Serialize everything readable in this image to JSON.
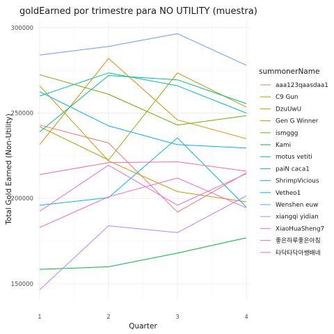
{
  "chart_data": {
    "type": "line",
    "title": "goldEarned por trimestre para NO UTILITY (muestra)",
    "xlabel": "Quarter",
    "ylabel": "Total Gold Earned (Non-Utility)",
    "x": [
      1,
      2,
      3,
      4
    ],
    "x_tick_labels": [
      "1",
      "2",
      "3",
      "4"
    ],
    "xlim": [
      0.95,
      4.05
    ],
    "y_ticks": [
      150000,
      200000,
      250000,
      300000
    ],
    "y_tick_labels": [
      "150000",
      "200000",
      "250000",
      "300000"
    ],
    "ylim": [
      141000,
      304000
    ],
    "grid": true,
    "legend_title": "summonerName",
    "legend_position": "right",
    "series": [
      {
        "name": "aaa123qaasdaa1",
        "color": "#F8766D",
        "values": [
          243000,
          232500,
          192000,
          215000
        ]
      },
      {
        "name": "C9 Gun",
        "color": "#E58700",
        "values": [
          231500,
          282000,
          246000,
          235000
        ]
      },
      {
        "name": "DzuUwU",
        "color": "#C99800",
        "values": [
          266000,
          222000,
          204000,
          198000
        ]
      },
      {
        "name": "Gen G Winner",
        "color": "#A3A500",
        "values": [
          242000,
          222500,
          273500,
          253500
        ]
      },
      {
        "name": "ismggg",
        "color": "#6BB100",
        "values": [
          272500,
          261000,
          243000,
          248500
        ]
      },
      {
        "name": "Kami",
        "color": "#00BA38",
        "values": [
          158500,
          160000,
          168000,
          177000
        ]
      },
      {
        "name": "motus vetiti",
        "color": "#00BF7D",
        "values": [
          239000,
          272000,
          269500,
          255500
        ]
      },
      {
        "name": "paiN caca1",
        "color": "#00C0AF",
        "values": [
          260000,
          273500,
          266000,
          250000
        ]
      },
      {
        "name": "ShrimpVicious",
        "color": "#00BCD8",
        "values": [
          196000,
          200500,
          235500,
          195000
        ]
      },
      {
        "name": "Vetheo1",
        "color": "#00B0F6",
        "values": [
          262500,
          242500,
          231500,
          229500
        ]
      },
      {
        "name": "Wenshen euw",
        "color": "#619CFF",
        "values": [
          284000,
          289000,
          296500,
          278000
        ]
      },
      {
        "name": "xiangqi yidian",
        "color": "#B983FF",
        "values": [
          146500,
          184000,
          180000,
          201500
        ]
      },
      {
        "name": "XiaoHuaSheng7",
        "color": "#E76BF3",
        "values": [
          192500,
          219500,
          196000,
          214500
        ]
      },
      {
        "name": "좋은하루좋은아침",
        "color": "#FD61D1",
        "values": [
          183000,
          201000,
          212000,
          194500
        ]
      },
      {
        "name": "타닥타닥아쌩배네",
        "color": "#FF67A4",
        "values": [
          214000,
          221000,
          221500,
          216000
        ]
      }
    ]
  }
}
